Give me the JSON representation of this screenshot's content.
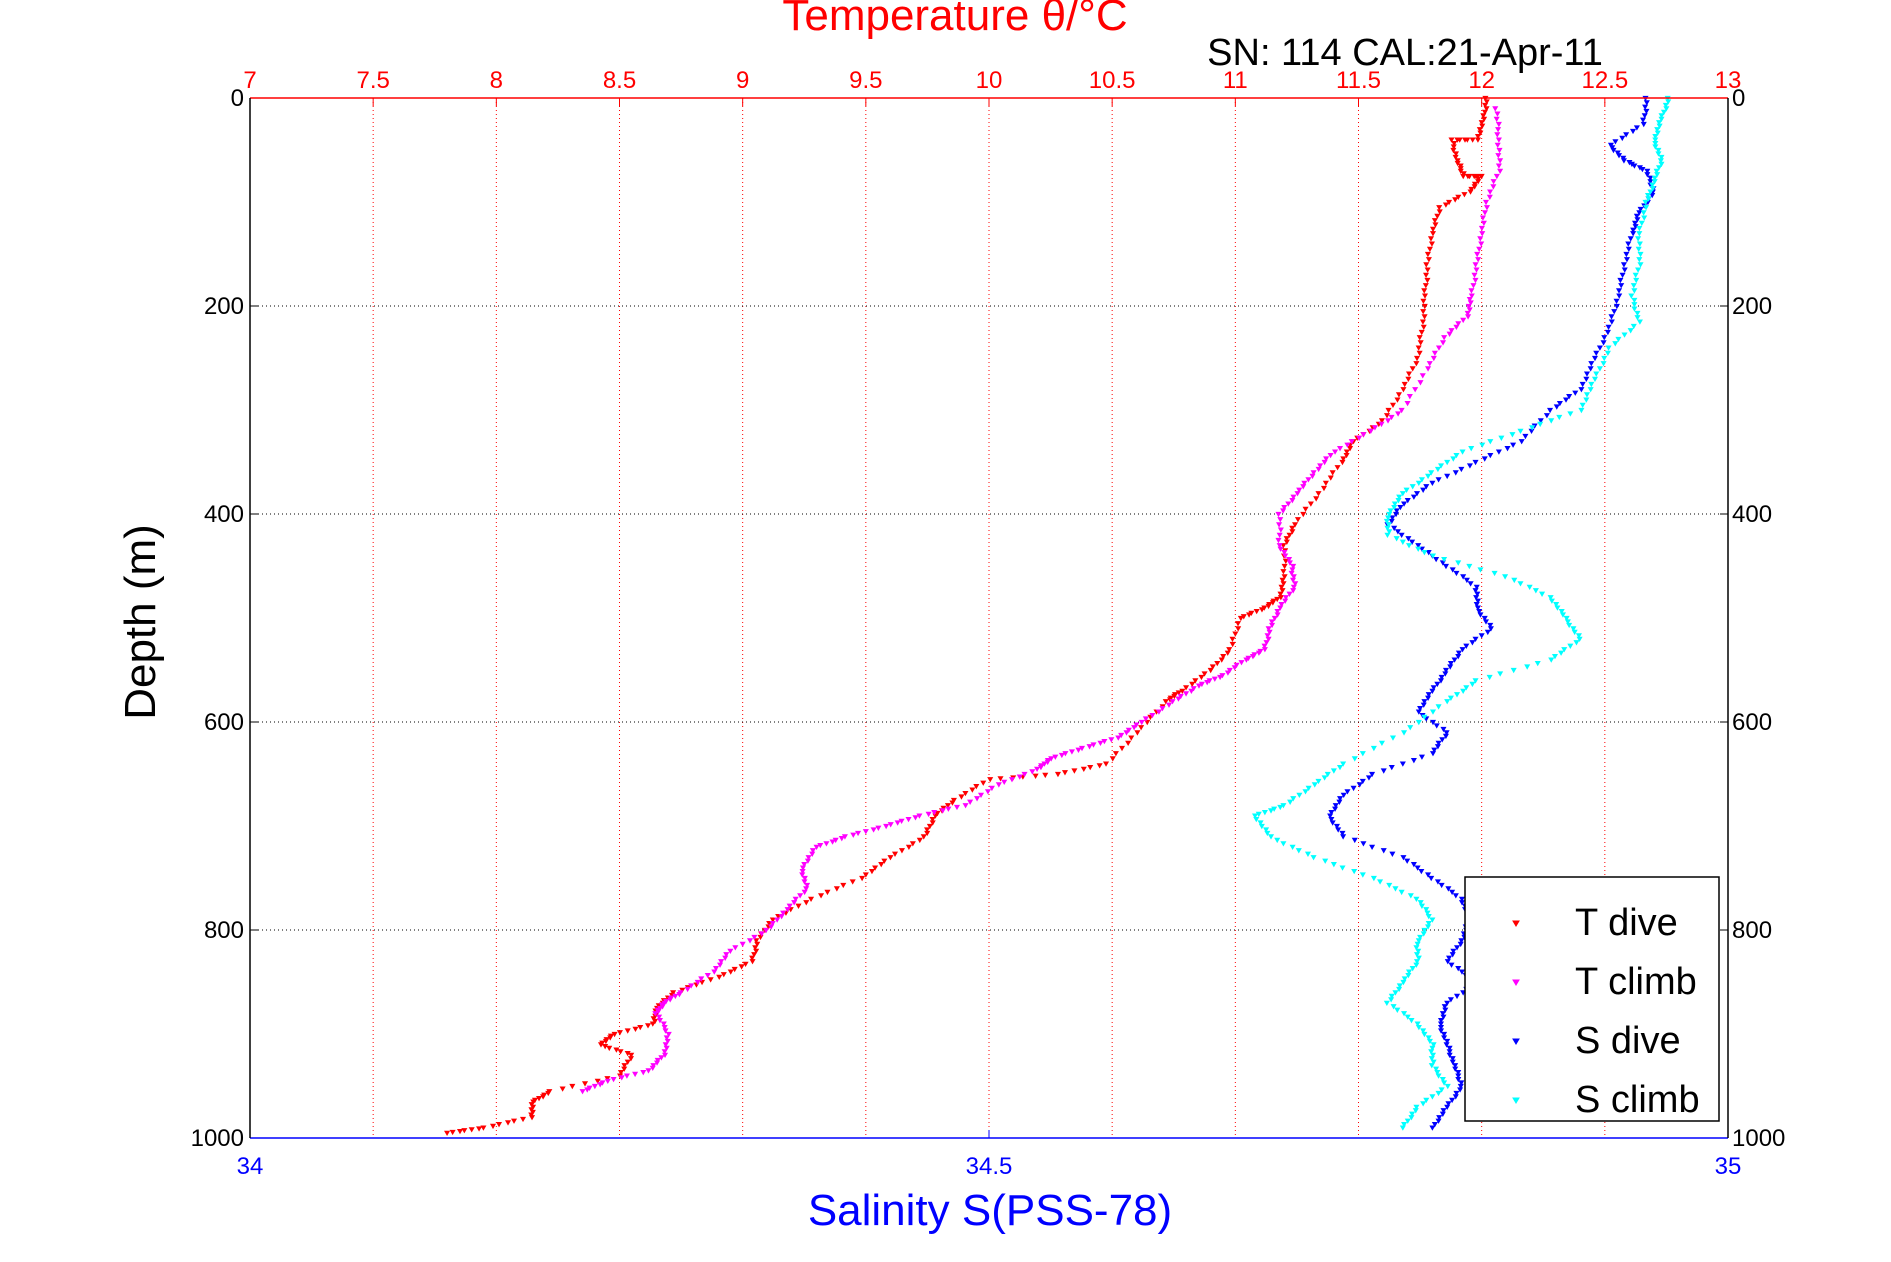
{
  "chart_data": {
    "type": "scatter",
    "title": "Temperature θ/°C",
    "subtitle": "SN: 114  CAL:21-Apr-11",
    "ylabel": "Depth (m)",
    "xlabel_top": "Temperature θ/°C",
    "xlabel_bottom": "Salinity S(PSS-78)",
    "top_axis": {
      "range": [
        7,
        13
      ],
      "ticks": [
        "7",
        "7.5",
        "8",
        "8.5",
        "9",
        "9.5",
        "10",
        "10.5",
        "11",
        "11.5",
        "12",
        "12.5",
        "13"
      ],
      "color": "#ff0000"
    },
    "bottom_axis": {
      "range": [
        34,
        35
      ],
      "ticks": [
        "34",
        "34.5",
        "35"
      ],
      "color": "#0000ff"
    },
    "y_axis": {
      "range": [
        0,
        1000
      ],
      "reversed": true,
      "ticks": [
        "0",
        "200",
        "400",
        "600",
        "800",
        "1000"
      ]
    },
    "grid": true,
    "legend_position": "bottom-right",
    "series": [
      {
        "name": "T dive",
        "axis": "top",
        "color": "#ff0000",
        "points": [
          [
            12.02,
            0
          ],
          [
            12.01,
            20
          ],
          [
            11.98,
            40
          ],
          [
            11.88,
            40
          ],
          [
            11.9,
            60
          ],
          [
            11.93,
            75
          ],
          [
            12.0,
            75
          ],
          [
            11.95,
            90
          ],
          [
            11.83,
            105
          ],
          [
            11.8,
            130
          ],
          [
            11.78,
            160
          ],
          [
            11.77,
            190
          ],
          [
            11.76,
            220
          ],
          [
            11.74,
            250
          ],
          [
            11.68,
            280
          ],
          [
            11.6,
            310
          ],
          [
            11.48,
            330
          ],
          [
            11.43,
            350
          ],
          [
            11.34,
            380
          ],
          [
            11.24,
            410
          ],
          [
            11.2,
            430
          ],
          [
            11.2,
            460
          ],
          [
            11.18,
            480
          ],
          [
            11.12,
            490
          ],
          [
            11.02,
            500
          ],
          [
            10.98,
            530
          ],
          [
            10.9,
            550
          ],
          [
            10.78,
            570
          ],
          [
            10.72,
            580
          ],
          [
            10.6,
            610
          ],
          [
            10.48,
            640
          ],
          [
            10.28,
            650
          ],
          [
            10.0,
            655
          ],
          [
            9.86,
            675
          ],
          [
            9.78,
            690
          ],
          [
            9.74,
            710
          ],
          [
            9.6,
            730
          ],
          [
            9.48,
            750
          ],
          [
            9.28,
            770
          ],
          [
            9.12,
            790
          ],
          [
            9.06,
            810
          ],
          [
            9.04,
            830
          ],
          [
            8.9,
            845
          ],
          [
            8.72,
            860
          ],
          [
            8.65,
            875
          ],
          [
            8.64,
            890
          ],
          [
            8.48,
            900
          ],
          [
            8.42,
            910
          ],
          [
            8.55,
            920
          ],
          [
            8.5,
            940
          ],
          [
            8.22,
            955
          ],
          [
            8.15,
            965
          ],
          [
            8.14,
            980
          ],
          [
            7.95,
            990
          ],
          [
            7.8,
            995
          ]
        ]
      },
      {
        "name": "T climb",
        "axis": "top",
        "color": "#ff00ff",
        "points": [
          [
            12.06,
            10
          ],
          [
            12.07,
            40
          ],
          [
            12.07,
            70
          ],
          [
            12.02,
            100
          ],
          [
            12.0,
            130
          ],
          [
            11.98,
            160
          ],
          [
            11.96,
            190
          ],
          [
            11.94,
            210
          ],
          [
            11.85,
            230
          ],
          [
            11.78,
            260
          ],
          [
            11.68,
            300
          ],
          [
            11.55,
            320
          ],
          [
            11.4,
            340
          ],
          [
            11.32,
            360
          ],
          [
            11.25,
            380
          ],
          [
            11.18,
            400
          ],
          [
            11.18,
            430
          ],
          [
            11.23,
            450
          ],
          [
            11.24,
            470
          ],
          [
            11.18,
            490
          ],
          [
            11.14,
            510
          ],
          [
            11.12,
            530
          ],
          [
            11.04,
            540
          ],
          [
            10.95,
            555
          ],
          [
            10.85,
            565
          ],
          [
            10.75,
            580
          ],
          [
            10.62,
            600
          ],
          [
            10.52,
            615
          ],
          [
            10.38,
            625
          ],
          [
            10.25,
            635
          ],
          [
            10.2,
            645
          ],
          [
            10.04,
            660
          ],
          [
            9.9,
            680
          ],
          [
            9.72,
            690
          ],
          [
            9.58,
            700
          ],
          [
            9.42,
            710
          ],
          [
            9.3,
            720
          ],
          [
            9.24,
            740
          ],
          [
            9.26,
            760
          ],
          [
            9.18,
            780
          ],
          [
            9.1,
            800
          ],
          [
            8.95,
            820
          ],
          [
            8.88,
            840
          ],
          [
            8.75,
            860
          ],
          [
            8.68,
            870
          ],
          [
            8.65,
            880
          ],
          [
            8.7,
            900
          ],
          [
            8.68,
            920
          ],
          [
            8.62,
            935
          ],
          [
            8.45,
            945
          ],
          [
            8.35,
            955
          ]
        ]
      },
      {
        "name": "S dive",
        "axis": "bottom",
        "color": "#0000ff",
        "points": [
          [
            34.945,
            0
          ],
          [
            34.943,
            25
          ],
          [
            34.92,
            45
          ],
          [
            34.93,
            60
          ],
          [
            34.945,
            70
          ],
          [
            34.95,
            90
          ],
          [
            34.94,
            110
          ],
          [
            34.935,
            130
          ],
          [
            34.93,
            160
          ],
          [
            34.926,
            190
          ],
          [
            34.92,
            220
          ],
          [
            34.91,
            250
          ],
          [
            34.9,
            280
          ],
          [
            34.88,
            300
          ],
          [
            34.86,
            330
          ],
          [
            34.83,
            350
          ],
          [
            34.8,
            370
          ],
          [
            34.78,
            390
          ],
          [
            34.77,
            410
          ],
          [
            34.79,
            430
          ],
          [
            34.81,
            450
          ],
          [
            34.83,
            470
          ],
          [
            34.83,
            490
          ],
          [
            34.84,
            510
          ],
          [
            34.82,
            530
          ],
          [
            34.81,
            550
          ],
          [
            34.8,
            570
          ],
          [
            34.79,
            590
          ],
          [
            34.81,
            610
          ],
          [
            34.8,
            630
          ],
          [
            34.76,
            650
          ],
          [
            34.74,
            670
          ],
          [
            34.73,
            690
          ],
          [
            34.74,
            710
          ],
          [
            34.78,
            730
          ],
          [
            34.8,
            750
          ],
          [
            34.82,
            770
          ],
          [
            34.825,
            790
          ],
          [
            34.82,
            810
          ],
          [
            34.81,
            830
          ],
          [
            34.83,
            850
          ],
          [
            34.81,
            870
          ],
          [
            34.805,
            890
          ],
          [
            34.81,
            910
          ],
          [
            34.815,
            930
          ],
          [
            34.82,
            950
          ],
          [
            34.81,
            970
          ],
          [
            34.8,
            990
          ]
        ]
      },
      {
        "name": "S climb",
        "axis": "bottom",
        "color": "#00ffff",
        "points": [
          [
            34.96,
            0
          ],
          [
            34.955,
            20
          ],
          [
            34.95,
            40
          ],
          [
            34.955,
            60
          ],
          [
            34.95,
            80
          ],
          [
            34.945,
            100
          ],
          [
            34.94,
            130
          ],
          [
            34.94,
            160
          ],
          [
            34.935,
            190
          ],
          [
            34.94,
            215
          ],
          [
            34.92,
            240
          ],
          [
            34.91,
            270
          ],
          [
            34.9,
            300
          ],
          [
            34.86,
            320
          ],
          [
            34.82,
            340
          ],
          [
            34.8,
            360
          ],
          [
            34.78,
            380
          ],
          [
            34.77,
            400
          ],
          [
            34.77,
            420
          ],
          [
            34.8,
            440
          ],
          [
            34.85,
            460
          ],
          [
            34.88,
            480
          ],
          [
            34.89,
            500
          ],
          [
            34.9,
            520
          ],
          [
            34.88,
            540
          ],
          [
            34.83,
            560
          ],
          [
            34.81,
            580
          ],
          [
            34.78,
            610
          ],
          [
            34.74,
            640
          ],
          [
            34.72,
            660
          ],
          [
            34.7,
            680
          ],
          [
            34.68,
            690
          ],
          [
            34.69,
            710
          ],
          [
            34.72,
            730
          ],
          [
            34.76,
            750
          ],
          [
            34.79,
            770
          ],
          [
            34.8,
            790
          ],
          [
            34.79,
            810
          ],
          [
            34.79,
            830
          ],
          [
            34.78,
            850
          ],
          [
            34.77,
            870
          ],
          [
            34.79,
            890
          ],
          [
            34.8,
            910
          ],
          [
            34.8,
            930
          ],
          [
            34.81,
            950
          ],
          [
            34.79,
            970
          ],
          [
            34.78,
            990
          ]
        ]
      }
    ]
  }
}
